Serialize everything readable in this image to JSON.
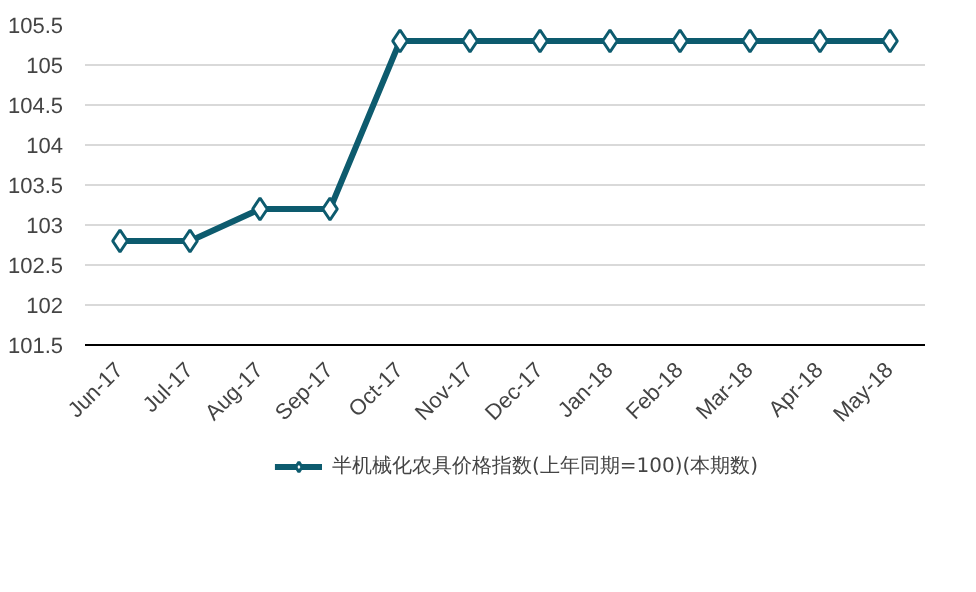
{
  "chart_data": {
    "type": "line",
    "categories": [
      "Jun-17",
      "Jul-17",
      "Aug-17",
      "Sep-17",
      "Oct-17",
      "Nov-17",
      "Dec-17",
      "Jan-18",
      "Feb-18",
      "Mar-18",
      "Apr-18",
      "May-18"
    ],
    "series": [
      {
        "name": "半机械化农具价格指数(上年同期=100)(本期数)",
        "color": "#0d5b6e",
        "values": [
          102.8,
          102.8,
          103.2,
          103.2,
          105.3,
          105.3,
          105.3,
          105.3,
          105.3,
          105.3,
          105.3,
          105.3
        ]
      }
    ],
    "ylim": [
      101.5,
      105.5
    ],
    "yticks": [
      101.5,
      102,
      102.5,
      103,
      103.5,
      104,
      104.5,
      105,
      105.5
    ],
    "grid": "y",
    "legend": "bottom",
    "marker": "diamond",
    "line_style": "solid"
  }
}
